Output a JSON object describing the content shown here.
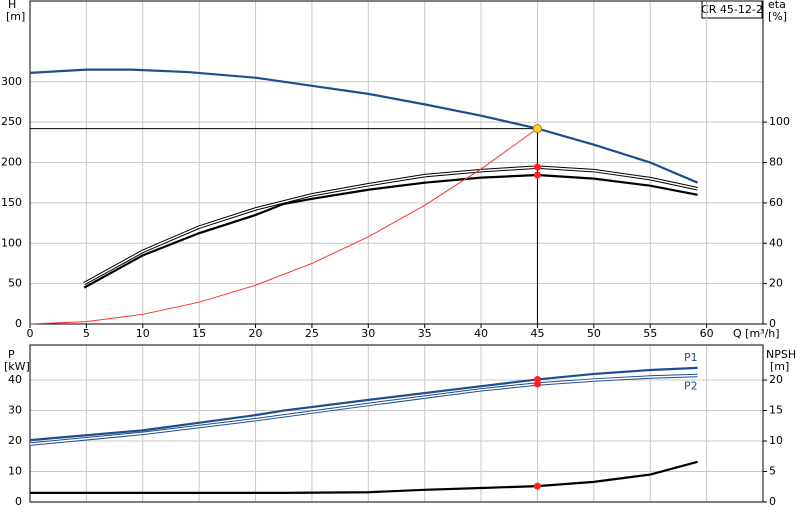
{
  "chart_data": [
    {
      "type": "line",
      "title": "CR 45-12-2",
      "x_label": "Q [m³/h]",
      "y_label": "H",
      "y_unit": "[m]",
      "y2_label": "eta",
      "y2_unit": "[%]",
      "xlim": [
        0,
        65
      ],
      "xticks": [
        0,
        5,
        10,
        15,
        20,
        25,
        30,
        35,
        40,
        45,
        50,
        55,
        60
      ],
      "ylim": [
        0,
        400
      ],
      "yticks": [
        0,
        50,
        100,
        150,
        200,
        250,
        300
      ],
      "y2lim": [
        0,
        160
      ],
      "y2ticks": [
        0,
        20,
        40,
        60,
        80,
        100
      ],
      "grid": true,
      "duty_point": {
        "x": 45,
        "y": 242,
        "color": "#ffd21f"
      },
      "series": [
        {
          "color": "#1f4e8c",
          "style": "thick",
          "x": [
            0,
            5,
            9,
            14,
            20,
            25,
            30,
            35,
            40,
            45,
            50,
            55,
            59.2
          ],
          "values": [
            311,
            315,
            315,
            312,
            305,
            295,
            285,
            272,
            258,
            242,
            222,
            200,
            175
          ]
        },
        {
          "color": "#000000",
          "style": "double",
          "axis": "y2",
          "x": [
            4.8,
            10,
            15,
            20,
            25,
            30,
            35,
            40,
            45,
            50,
            55,
            59.2
          ],
          "values": [
            20,
            36,
            48,
            57,
            64,
            69,
            73.5,
            76,
            77.7,
            76,
            72,
            67
          ]
        },
        {
          "color": "#000000",
          "style": "thick",
          "axis": "y2",
          "x": [
            4.8,
            10,
            15,
            20,
            22.5,
            25,
            30,
            35,
            40,
            45,
            50,
            55,
            59.2
          ],
          "values": [
            18,
            34,
            45,
            54,
            59.5,
            62,
            66.5,
            70,
            72.5,
            73.8,
            72,
            68.5,
            64
          ]
        },
        {
          "color": "#ff3030",
          "style": "thin",
          "x": [
            0,
            5,
            10,
            15,
            20,
            25,
            30,
            35,
            40,
            45
          ],
          "values": [
            0,
            3,
            12,
            27,
            48,
            75,
            108,
            147,
            192,
            242
          ]
        }
      ]
    },
    {
      "type": "line",
      "y_label": "P",
      "y_unit": "[kW]",
      "y2_label": "NPSH",
      "y2_unit": "[m]",
      "xlim": [
        0,
        65
      ],
      "ylim": [
        0,
        51.5
      ],
      "yticks": [
        0,
        10,
        20,
        30,
        40
      ],
      "y2lim": [
        0,
        25.75
      ],
      "y2ticks": [
        0,
        5,
        10,
        15,
        20
      ],
      "grid": true,
      "series": [
        {
          "name": "P1",
          "color": "#1f4e8c",
          "style": "thick",
          "x": [
            0,
            10,
            20,
            22.5,
            30,
            40,
            45,
            50,
            55,
            59.2
          ],
          "values": [
            20.3,
            23.5,
            28.5,
            30,
            33.5,
            38,
            40.2,
            42,
            43.3,
            44
          ]
        },
        {
          "name": "P2",
          "color": "#1f4e8c",
          "style": "double",
          "x": [
            0,
            10,
            20,
            30,
            40,
            45,
            50,
            55,
            59.2
          ],
          "values": [
            19,
            22.5,
            27,
            32,
            36.8,
            38.7,
            40,
            41,
            41.5
          ]
        },
        {
          "color": "#000000",
          "style": "thick",
          "axis": "y2",
          "x": [
            0,
            22.5,
            30,
            35,
            40,
            45,
            50,
            55,
            59.2
          ],
          "values": [
            1.5,
            1.5,
            1.6,
            2.0,
            2.3,
            2.6,
            3.3,
            4.5,
            6.6
          ]
        }
      ]
    }
  ]
}
